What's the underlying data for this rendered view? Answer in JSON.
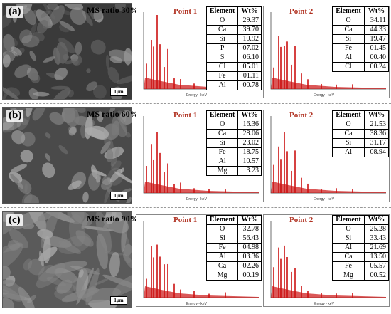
{
  "headers": {
    "element": "Element",
    "wt": "Wt%"
  },
  "panels": [
    {
      "label": "(a)",
      "ms_ratio": "MS ratio 30%",
      "scale": "1μm",
      "points": [
        {
          "title": "Point 1",
          "rows": [
            [
              "O",
              "29.37"
            ],
            [
              "Ca",
              "39.70"
            ],
            [
              "Si",
              "10.92"
            ],
            [
              "P",
              "07.02"
            ],
            [
              "S",
              "06.10"
            ],
            [
              "Cl",
              "05.01"
            ],
            [
              "Fe",
              "01.11"
            ],
            [
              "Al",
              "00.78"
            ]
          ]
        },
        {
          "title": "Point 2",
          "rows": [
            [
              "O",
              "34.11"
            ],
            [
              "Ca",
              "44.33"
            ],
            [
              "Si",
              "19.47"
            ],
            [
              "Fe",
              "01.45"
            ],
            [
              "Al",
              "00.40"
            ],
            [
              "Cl",
              "00.24"
            ]
          ]
        }
      ]
    },
    {
      "label": "(b)",
      "ms_ratio": "MS ratio 60%",
      "scale": "1μm",
      "points": [
        {
          "title": "Point 1",
          "rows": [
            [
              "O",
              "16.36"
            ],
            [
              "Ca",
              "28.06"
            ],
            [
              "Si",
              "23.02"
            ],
            [
              "Fe",
              "18.75"
            ],
            [
              "Al",
              "10.57"
            ],
            [
              "Mg",
              "3.23"
            ]
          ]
        },
        {
          "title": "Point 2",
          "rows": [
            [
              "O",
              "21.53"
            ],
            [
              "Ca",
              "38.36"
            ],
            [
              "Si",
              "31.17"
            ],
            [
              "Al",
              "08.94"
            ]
          ]
        }
      ]
    },
    {
      "label": "(c)",
      "ms_ratio": "MS ratio 90%",
      "scale": "1μm",
      "points": [
        {
          "title": "Point 1",
          "rows": [
            [
              "O",
              "32.78"
            ],
            [
              "Si",
              "56.43"
            ],
            [
              "Fe",
              "04.98"
            ],
            [
              "Al",
              "03.36"
            ],
            [
              "Ca",
              "02.26"
            ],
            [
              "Mg",
              "00.19"
            ]
          ]
        },
        {
          "title": "Point 2",
          "rows": [
            [
              "O",
              "25.28"
            ],
            [
              "Si",
              "33.43"
            ],
            [
              "Al",
              "21.69"
            ],
            [
              "Ca",
              "13.50"
            ],
            [
              "Fe",
              "05.57"
            ],
            [
              "Mg",
              "00.52"
            ]
          ]
        }
      ]
    }
  ],
  "spectrum_xlabel": "Energy - keV",
  "spectrum_color": "#cc1111"
}
